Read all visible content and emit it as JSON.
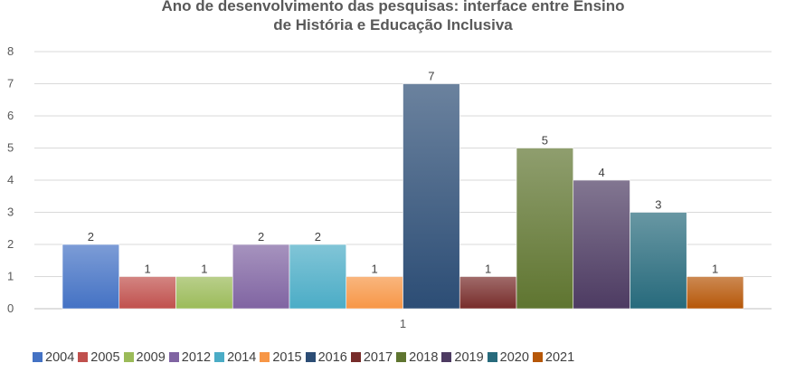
{
  "chart_data": {
    "type": "bar",
    "title_line1": "Ano de desenvolvimento das pesquisas: interface entre Ensino",
    "title_line2": "de História e Educação Inclusiva",
    "categories": [
      "1"
    ],
    "ylim": [
      0,
      8
    ],
    "yticks": [
      "0",
      "1",
      "2",
      "3",
      "4",
      "5",
      "6",
      "7",
      "8"
    ],
    "grid": true,
    "legend_position": "bottom",
    "series": [
      {
        "name": "2004",
        "value": 2,
        "color": "#4472C4"
      },
      {
        "name": "2005",
        "value": 1,
        "color": "#C0504D"
      },
      {
        "name": "2009",
        "value": 1,
        "color": "#9BBB59"
      },
      {
        "name": "2012",
        "value": 2,
        "color": "#8064A2"
      },
      {
        "name": "2014",
        "value": 2,
        "color": "#4BACC6"
      },
      {
        "name": "2015",
        "value": 1,
        "color": "#F79646"
      },
      {
        "name": "2016",
        "value": 7,
        "color": "#2C4D75"
      },
      {
        "name": "2017",
        "value": 1,
        "color": "#772C2A"
      },
      {
        "name": "2018",
        "value": 5,
        "color": "#5F7530"
      },
      {
        "name": "2019",
        "value": 4,
        "color": "#4D3B62"
      },
      {
        "name": "2020",
        "value": 3,
        "color": "#276A7C"
      },
      {
        "name": "2021",
        "value": 1,
        "color": "#B65708"
      }
    ]
  }
}
